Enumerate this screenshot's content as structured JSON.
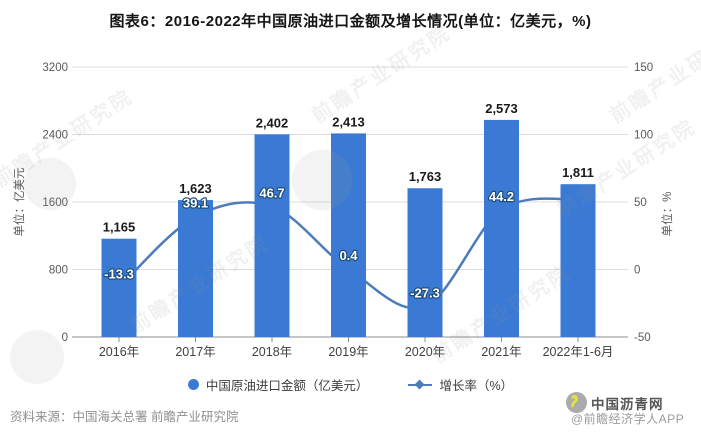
{
  "title": "图表6：2016-2022年中国原油进口金额及增长情况(单位：亿美元，%)",
  "chart_data": {
    "type": "bar+line",
    "categories": [
      "2016年",
      "2017年",
      "2018年",
      "2019年",
      "2020年",
      "2021年",
      "2022年1-6月"
    ],
    "series": [
      {
        "name": "中国原油进口金额（亿美元）",
        "type": "bar",
        "axis": "left",
        "values": [
          1165,
          1623,
          2402,
          2413,
          1763,
          2573,
          1811
        ],
        "value_labels": [
          "1,165",
          "1,623",
          "2,402",
          "2,413",
          "1,763",
          "2,573",
          "1,811"
        ]
      },
      {
        "name": "增长率（%）",
        "type": "line",
        "axis": "right",
        "values": [
          -13.3,
          39.1,
          46.7,
          0.4,
          -27.3,
          44.2,
          52
        ],
        "value_labels": [
          "-13.3",
          "39.1",
          "46.7",
          "0.4",
          "-27.3",
          "44.2",
          ""
        ]
      }
    ],
    "left_axis": {
      "title": "单位：亿美元",
      "min": 0,
      "max": 3200,
      "ticks": [
        0,
        800,
        1600,
        2400,
        3200
      ]
    },
    "right_axis": {
      "title": "单位：%",
      "min": -50,
      "max": 150,
      "ticks": [
        -50,
        0,
        50,
        100,
        150
      ]
    },
    "grid": true,
    "legend_position": "bottom"
  },
  "legend": {
    "items": [
      {
        "label": "中国原油进口金额（亿美元）",
        "marker": "circle"
      },
      {
        "label": "增长率（%）",
        "marker": "line-diamond"
      }
    ]
  },
  "footer": {
    "source": "资料来源：中国海关总署 前瞻产业研究院",
    "site_name": "中国沥青网",
    "credit": "@前瞻经济学人APP"
  },
  "watermark_text": "前瞻产业研究院",
  "colors": {
    "bar": "#3b7ad4",
    "line": "#4d7cba",
    "grid": "#dcdcdc",
    "axis_line": "#8c8c8c",
    "tick_text": "#595959",
    "x_label_text": "#404040",
    "bar_label": "#1a1a1a",
    "line_label_fill": "#ffffff",
    "line_label_stroke": "#1f4e79",
    "logo_circle": "#ababab",
    "logo_swan": "#e4e03d"
  }
}
